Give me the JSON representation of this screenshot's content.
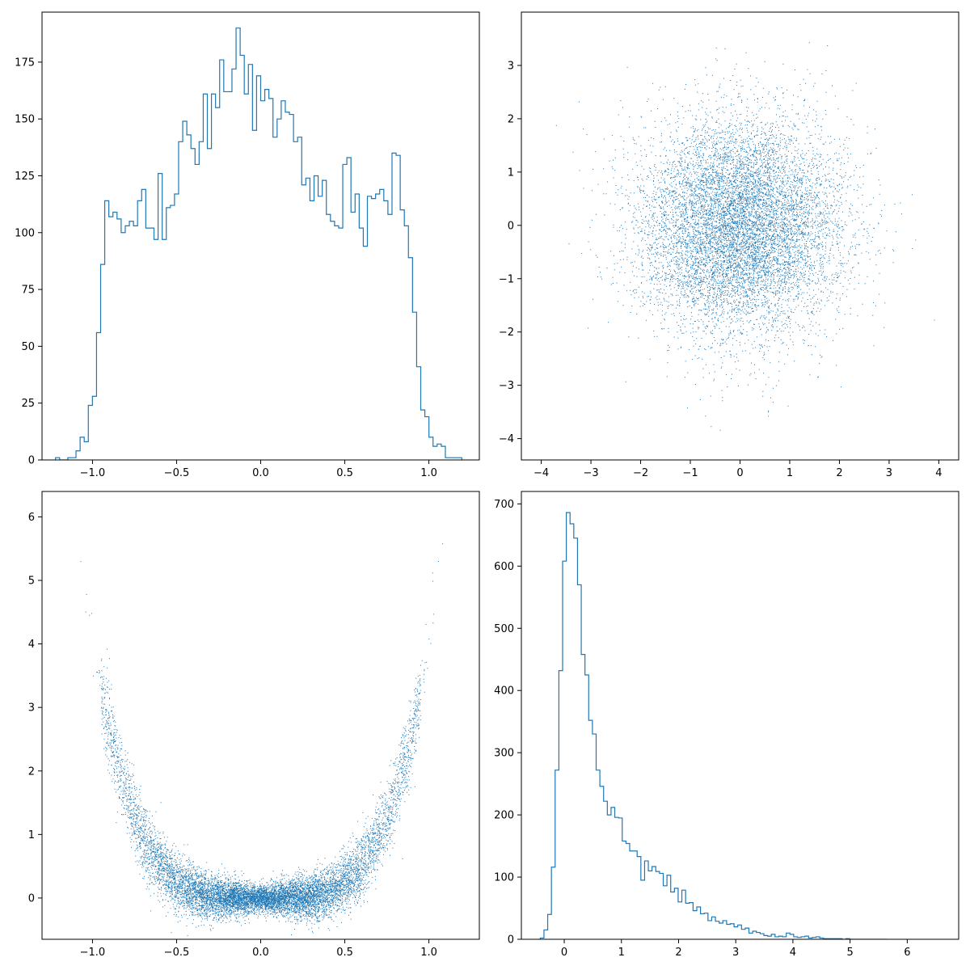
{
  "chart_data": [
    {
      "type": "histogram",
      "position": "top-left",
      "histtype": "step",
      "xlim": [
        -1.3,
        1.3
      ],
      "ylim": [
        0,
        197
      ],
      "xticks": [
        -1.0,
        -0.5,
        0.0,
        0.5,
        1.0
      ],
      "xtick_labels": [
        "−1.0",
        "−0.5",
        "0.0",
        "0.5",
        "1.0"
      ],
      "yticks": [
        0,
        25,
        50,
        75,
        100,
        125,
        150,
        175
      ],
      "ytick_labels": [
        "0",
        "25",
        "50",
        "75",
        "100",
        "125",
        "150",
        "175"
      ],
      "bin_start": -1.22,
      "bin_width": 0.0244,
      "counts": [
        1,
        0,
        0,
        1,
        1,
        4,
        10,
        8,
        24,
        28,
        56,
        86,
        114,
        107,
        109,
        106,
        100,
        103,
        105,
        103,
        114,
        119,
        102,
        102,
        97,
        126,
        97,
        111,
        112,
        117,
        140,
        149,
        143,
        137,
        130,
        140,
        161,
        137,
        161,
        155,
        176,
        162,
        162,
        172,
        190,
        178,
        161,
        174,
        145,
        169,
        158,
        163,
        159,
        142,
        150,
        158,
        153,
        152,
        140,
        142,
        121,
        124,
        114,
        125,
        116,
        123,
        108,
        105,
        103,
        102,
        130,
        133,
        109,
        117,
        102,
        94,
        116,
        115,
        117,
        119,
        114,
        108,
        135,
        134,
        110,
        103,
        89,
        65,
        41,
        22,
        19,
        10,
        6,
        7,
        6,
        1,
        1,
        1,
        1
      ]
    },
    {
      "type": "scatter",
      "position": "top-right",
      "description_of_distribution": "bivariate standard normal, ~10000 points",
      "xlim": [
        -4.4,
        4.4
      ],
      "ylim": [
        -4.4,
        4.0
      ],
      "xticks": [
        -4,
        -3,
        -2,
        -1,
        0,
        1,
        2,
        3,
        4
      ],
      "xtick_labels": [
        "−4",
        "−3",
        "−2",
        "−1",
        "0",
        "1",
        "2",
        "3",
        "4"
      ],
      "yticks": [
        -4,
        -3,
        -2,
        -1,
        0,
        1,
        2,
        3
      ],
      "ytick_labels": [
        "−4",
        "−3",
        "−2",
        "−1",
        "0",
        "1",
        "2",
        "3"
      ],
      "n_points": 10000,
      "x_mean": 0,
      "x_std": 1,
      "y_mean": 0,
      "y_std": 1,
      "color": "#1f77b4"
    },
    {
      "type": "scatter",
      "position": "bottom-left",
      "description_of_distribution": "x in [-1.2,1.2], y ≈ 4·x^4 + noise",
      "xlim": [
        -1.3,
        1.3
      ],
      "ylim": [
        -0.65,
        6.4
      ],
      "xticks": [
        -1.0,
        -0.5,
        0.0,
        0.5,
        1.0
      ],
      "xtick_labels": [
        "−1.0",
        "−0.5",
        "0.0",
        "0.5",
        "1.0"
      ],
      "yticks": [
        0,
        1,
        2,
        3,
        4,
        5,
        6
      ],
      "ytick_labels": [
        "0",
        "1",
        "2",
        "3",
        "4",
        "5",
        "6"
      ],
      "n_points": 10000,
      "color": "#1f77b4"
    },
    {
      "type": "histogram",
      "position": "bottom-right",
      "histtype": "step",
      "xlim": [
        -0.75,
        6.9
      ],
      "ylim": [
        0,
        720
      ],
      "xticks": [
        0,
        1,
        2,
        3,
        4,
        5,
        6
      ],
      "xtick_labels": [
        "0",
        "1",
        "2",
        "3",
        "4",
        "5",
        "6"
      ],
      "yticks": [
        0,
        100,
        200,
        300,
        400,
        500,
        600,
        700
      ],
      "ytick_labels": [
        "0",
        "100",
        "200",
        "300",
        "400",
        "500",
        "600",
        "700"
      ],
      "bin_start": -0.42,
      "bin_width": 0.0652,
      "counts": [
        2,
        15,
        40,
        116,
        272,
        432,
        608,
        686,
        668,
        645,
        570,
        458,
        425,
        352,
        330,
        272,
        246,
        222,
        200,
        212,
        196,
        195,
        158,
        154,
        142,
        142,
        133,
        95,
        126,
        110,
        117,
        109,
        106,
        86,
        103,
        76,
        82,
        60,
        79,
        58,
        59,
        46,
        52,
        41,
        42,
        30,
        36,
        29,
        26,
        30,
        24,
        25,
        20,
        23,
        16,
        18,
        10,
        13,
        11,
        9,
        6,
        5,
        8,
        4,
        5,
        4,
        10,
        8,
        4,
        3,
        4,
        5,
        2,
        3,
        4,
        2,
        1,
        1,
        1,
        1,
        1,
        0,
        1,
        0,
        0,
        0,
        0,
        0,
        0,
        0,
        0,
        0,
        0
      ]
    }
  ],
  "style": {
    "series_color": "#1f77b4",
    "frame_color": "#000000",
    "background": "#ffffff"
  }
}
